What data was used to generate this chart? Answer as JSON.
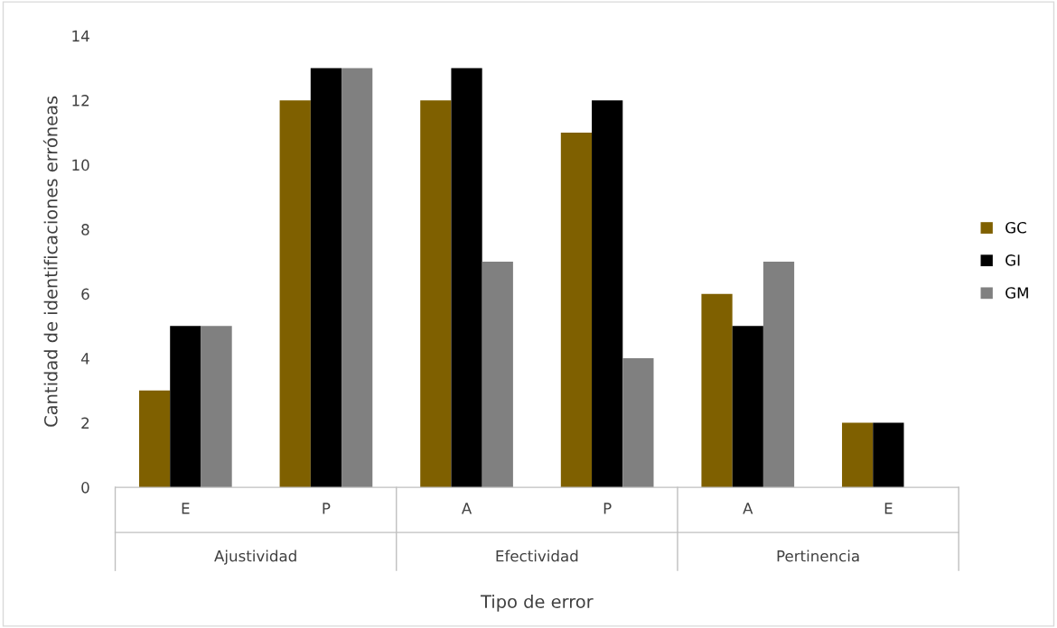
{
  "chart_data": {
    "type": "bar",
    "xlabel": "Tipo de error",
    "ylabel": "Cantidad de identificaciones erróneas",
    "categories": [
      "E",
      "P",
      "A",
      "P",
      "A",
      "E"
    ],
    "annotations": [
      "Ajustividad",
      "Efectividad",
      "Pertinencia"
    ],
    "series": [
      {
        "name": "GC",
        "color": "#7f6000",
        "values": [
          3,
          12,
          12,
          11,
          6,
          2
        ]
      },
      {
        "name": "GI",
        "color": "#000000",
        "values": [
          5,
          13,
          13,
          12,
          5,
          2
        ]
      },
      {
        "name": "GM",
        "color": "#808080",
        "values": [
          5,
          13,
          7,
          4,
          7,
          0
        ]
      }
    ],
    "ylim": [
      0,
      14
    ],
    "yticks": [
      0,
      2,
      4,
      6,
      8,
      10,
      12,
      14
    ],
    "grid": false,
    "legend": "right"
  }
}
